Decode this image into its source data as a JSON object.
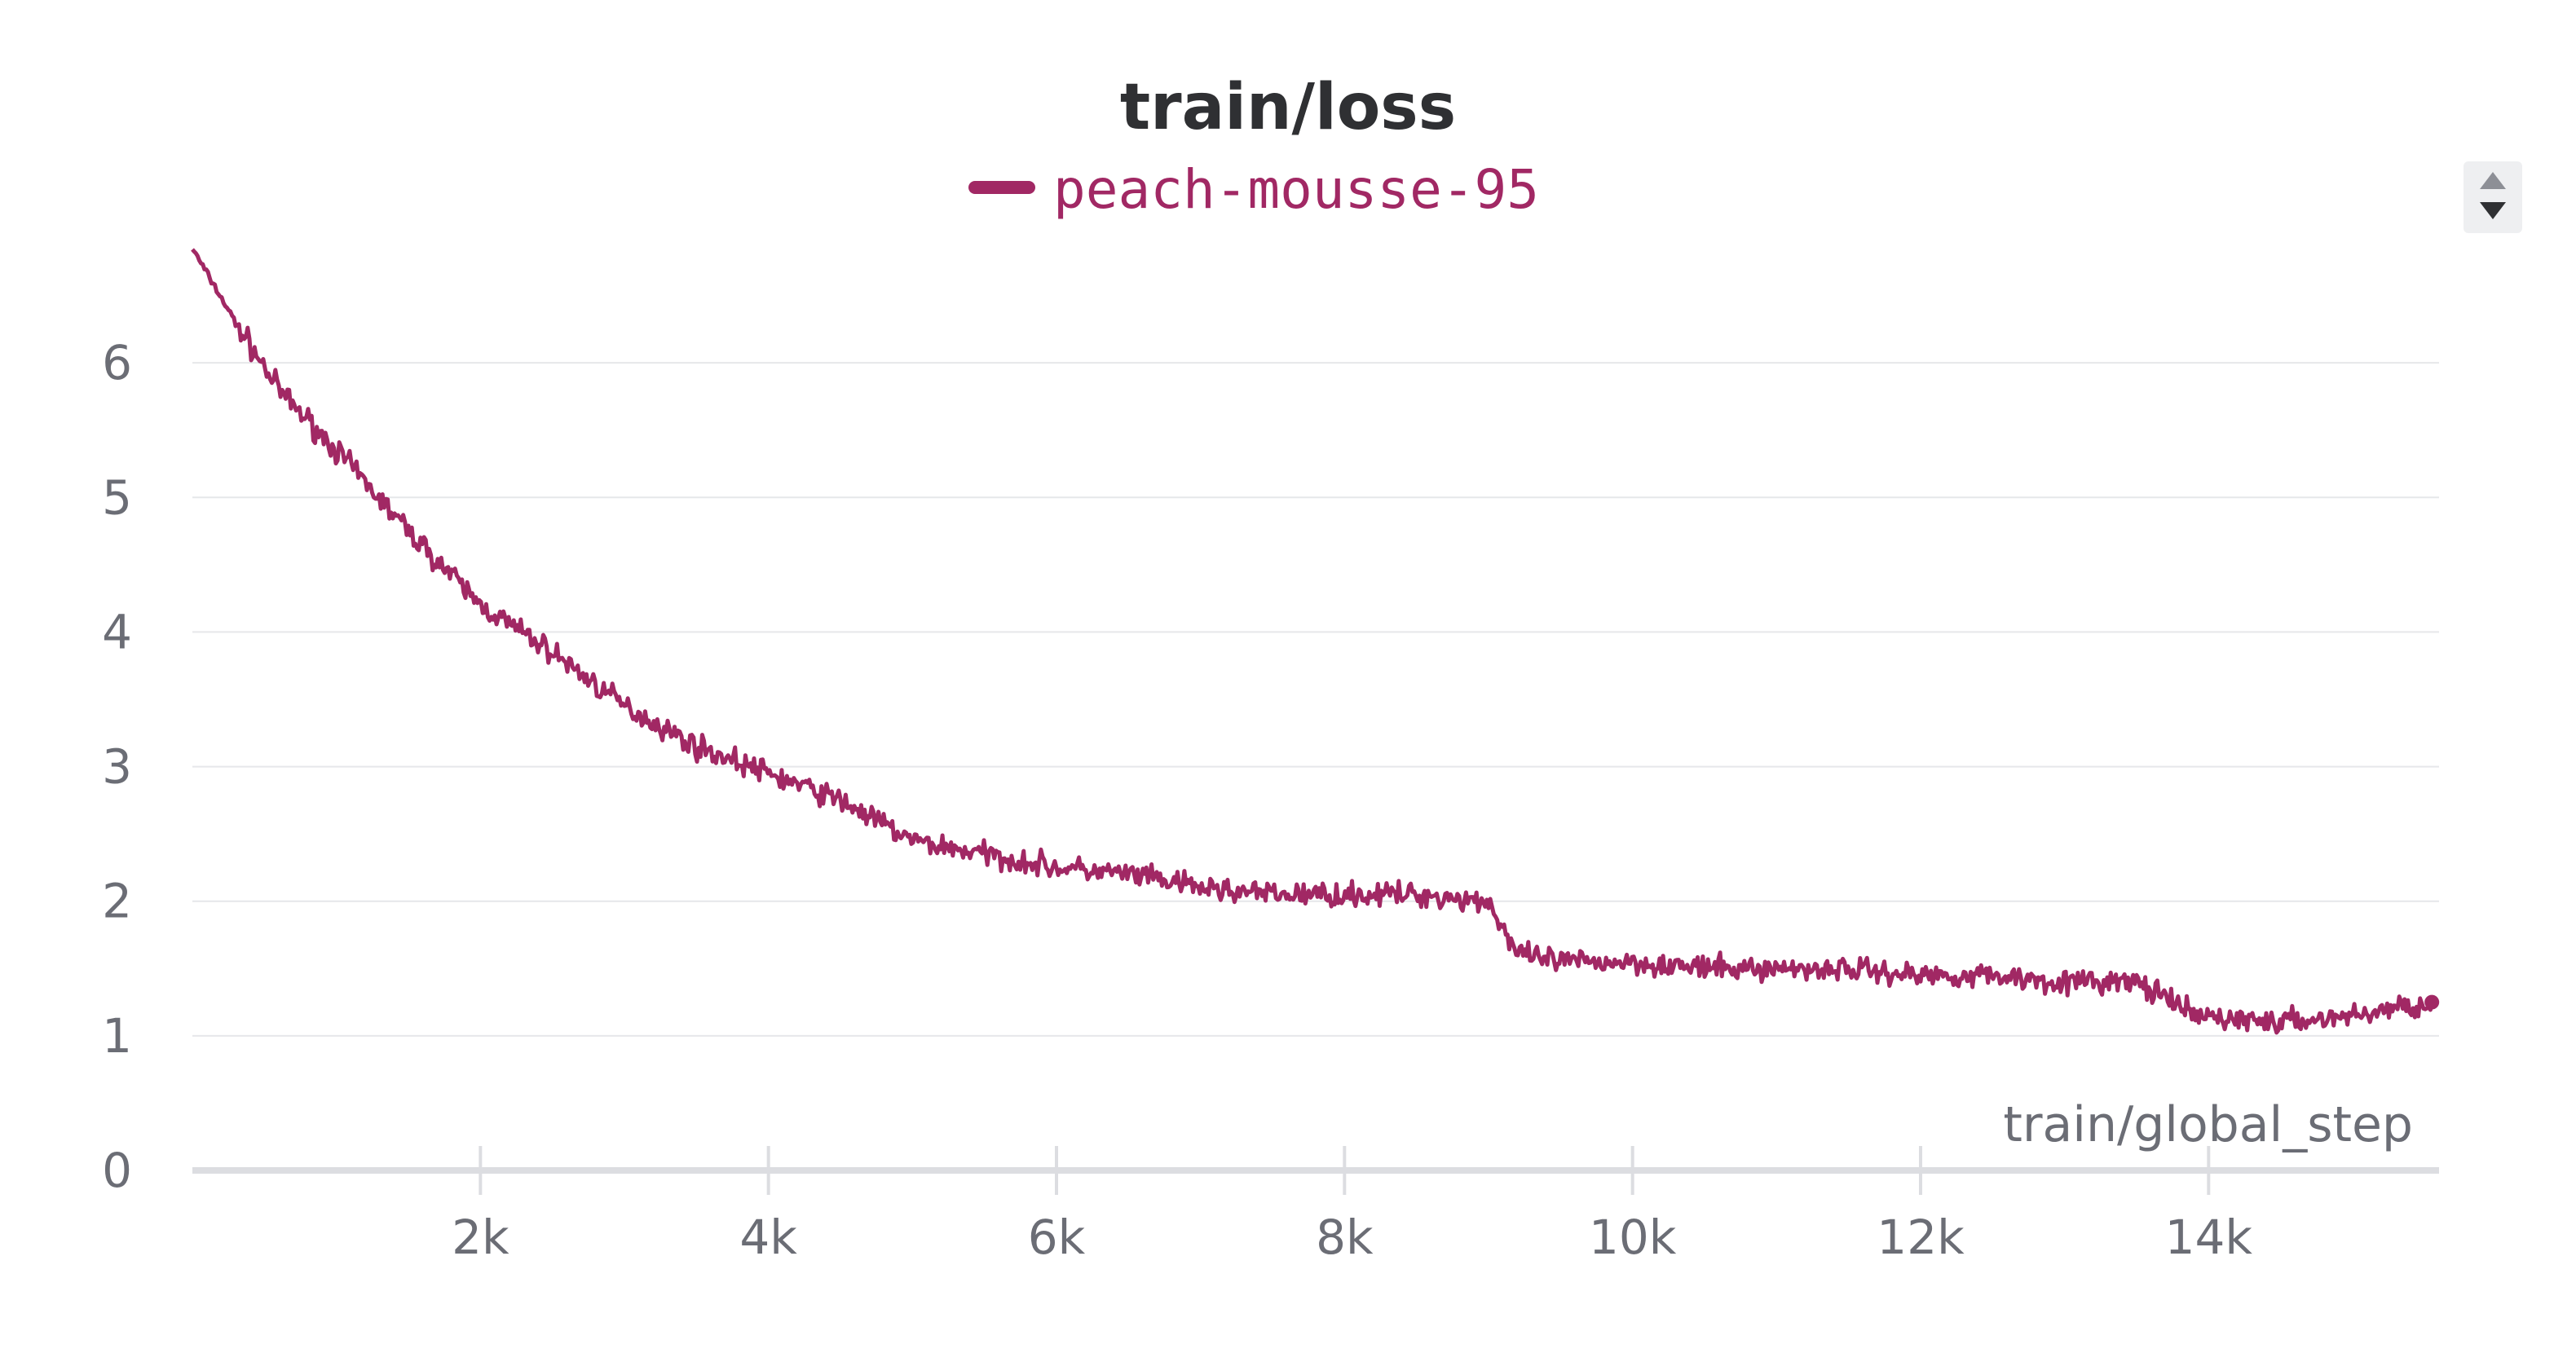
{
  "chart_data": {
    "type": "line",
    "title": "train/loss",
    "xlabel": "train/global_step",
    "ylabel": "",
    "xlim": [
      0,
      15600
    ],
    "ylim": [
      0,
      7
    ],
    "x_ticks": [
      2000,
      4000,
      6000,
      8000,
      10000,
      12000,
      14000
    ],
    "x_tick_labels": [
      "2k",
      "4k",
      "6k",
      "8k",
      "10k",
      "12k",
      "14k"
    ],
    "y_ticks": [
      0,
      1,
      2,
      3,
      4,
      5,
      6
    ],
    "y_tick_labels": [
      "0",
      "1",
      "2",
      "3",
      "4",
      "5",
      "6"
    ],
    "grid": true,
    "legend_position": "top-center",
    "series": [
      {
        "name": "peach-mousse-95",
        "color": "#a12864",
        "noise": 0.13,
        "x": [
          0,
          300,
          600,
          1000,
          1500,
          2000,
          2500,
          3000,
          3500,
          4000,
          4500,
          5000,
          5500,
          6000,
          6500,
          7000,
          7500,
          8000,
          8500,
          9000,
          9200,
          9500,
          10000,
          10500,
          11000,
          11500,
          12000,
          12500,
          13000,
          13500,
          13900,
          14500,
          15000,
          15550
        ],
        "values": [
          6.85,
          6.3,
          5.8,
          5.35,
          4.75,
          4.2,
          3.85,
          3.45,
          3.15,
          2.95,
          2.75,
          2.45,
          2.35,
          2.25,
          2.2,
          2.1,
          2.05,
          2.05,
          2.05,
          2.0,
          1.6,
          1.55,
          1.55,
          1.5,
          1.5,
          1.5,
          1.45,
          1.45,
          1.4,
          1.4,
          1.15,
          1.1,
          1.15,
          1.25
        ]
      }
    ]
  },
  "scroll_control": {
    "up_icon": "triangle-up-icon",
    "down_icon": "triangle-down-icon"
  }
}
